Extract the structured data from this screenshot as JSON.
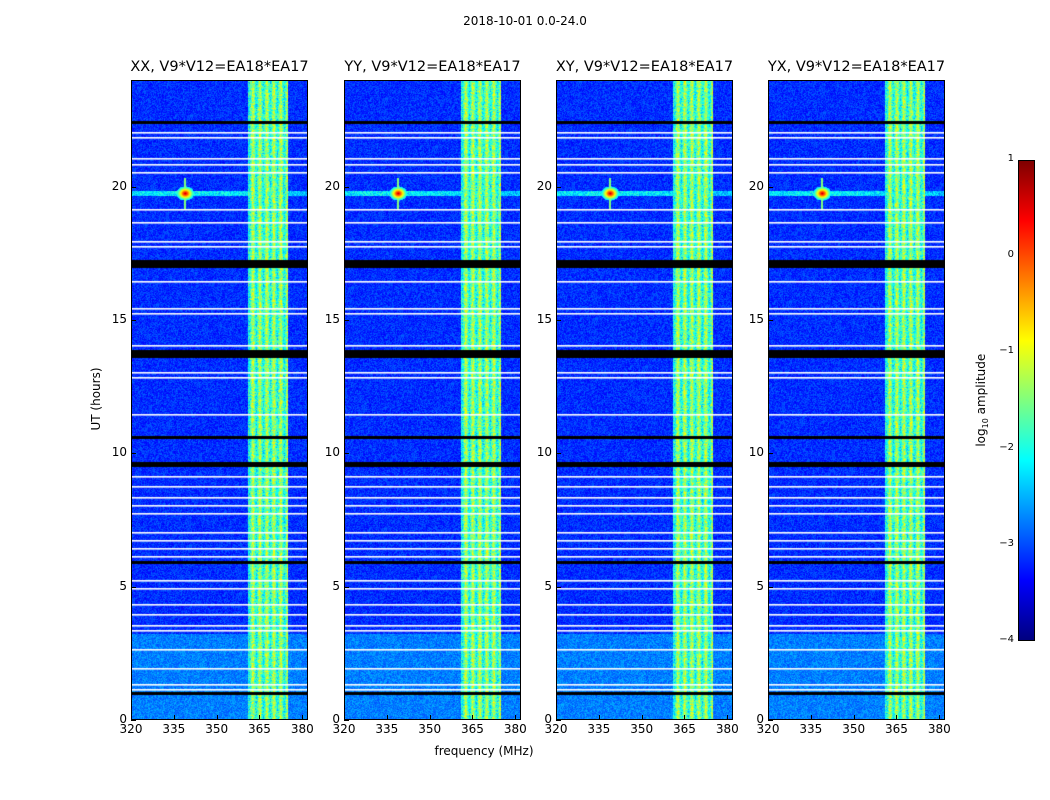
{
  "chart_data": {
    "type": "heatmap",
    "suptitle": "2018-10-01 0.0-24.0",
    "xlabel": "frequency (MHz)",
    "ylabel": "UT (hours)",
    "xlim": [
      320,
      382
    ],
    "ylim": [
      0,
      24
    ],
    "xticks": [
      320,
      335,
      350,
      365,
      380
    ],
    "yticks": [
      0,
      5,
      10,
      15,
      20
    ],
    "panels": [
      {
        "title": "XX, V9*V12=EA18*EA17",
        "rfi_source": {
          "freq": 338.5,
          "ut": 19.8
        }
      },
      {
        "title": "YY, V9*V12=EA18*EA17",
        "rfi_source": {
          "freq": 338.5,
          "ut": 19.8
        }
      },
      {
        "title": "XY, V9*V12=EA18*EA17",
        "rfi_source": {
          "freq": 338.5,
          "ut": 19.8
        }
      },
      {
        "title": "YX, V9*V12=EA18*EA17",
        "rfi_source": {
          "freq": 338.5,
          "ut": 19.8
        }
      }
    ],
    "bright_band_mhz": [
      360.5,
      374.5
    ],
    "flagged_white_ut": [
      22.1,
      21.9,
      21.1,
      20.9,
      20.6,
      19.2,
      18.7,
      18.0,
      17.8,
      16.5,
      15.5,
      15.3,
      14.1,
      13.1,
      12.9,
      11.5,
      9.2,
      8.8,
      8.4,
      8.1,
      7.8,
      7.1,
      6.8,
      6.5,
      6.2,
      5.3,
      5.0,
      4.4,
      4.0,
      3.6,
      3.4,
      2.7,
      2.0,
      1.4,
      1.2
    ],
    "flagged_black_ut": [
      [
        22.4,
        22.5
      ],
      [
        17.0,
        17.3
      ],
      [
        13.6,
        13.9
      ],
      [
        10.6,
        10.7
      ],
      [
        9.5,
        9.7
      ],
      [
        5.9,
        6.0
      ],
      [
        1.0,
        1.1
      ]
    ],
    "colorbar": {
      "label": "log10 amplitude",
      "label_prefix": "log",
      "label_sub": "10",
      "label_suffix": " amplitude",
      "vmin": -4,
      "vmax": 1,
      "ticks": [
        "1",
        "0",
        "−1",
        "−2",
        "−3",
        "−4"
      ],
      "tick_values": [
        1,
        0,
        -1,
        -2,
        -3,
        -4
      ],
      "cmap": [
        "#00007f",
        "#0000ff",
        "#007fff",
        "#00ffff",
        "#7fff7f",
        "#ffff00",
        "#ff7f00",
        "#ff0000",
        "#7f0000"
      ]
    }
  }
}
